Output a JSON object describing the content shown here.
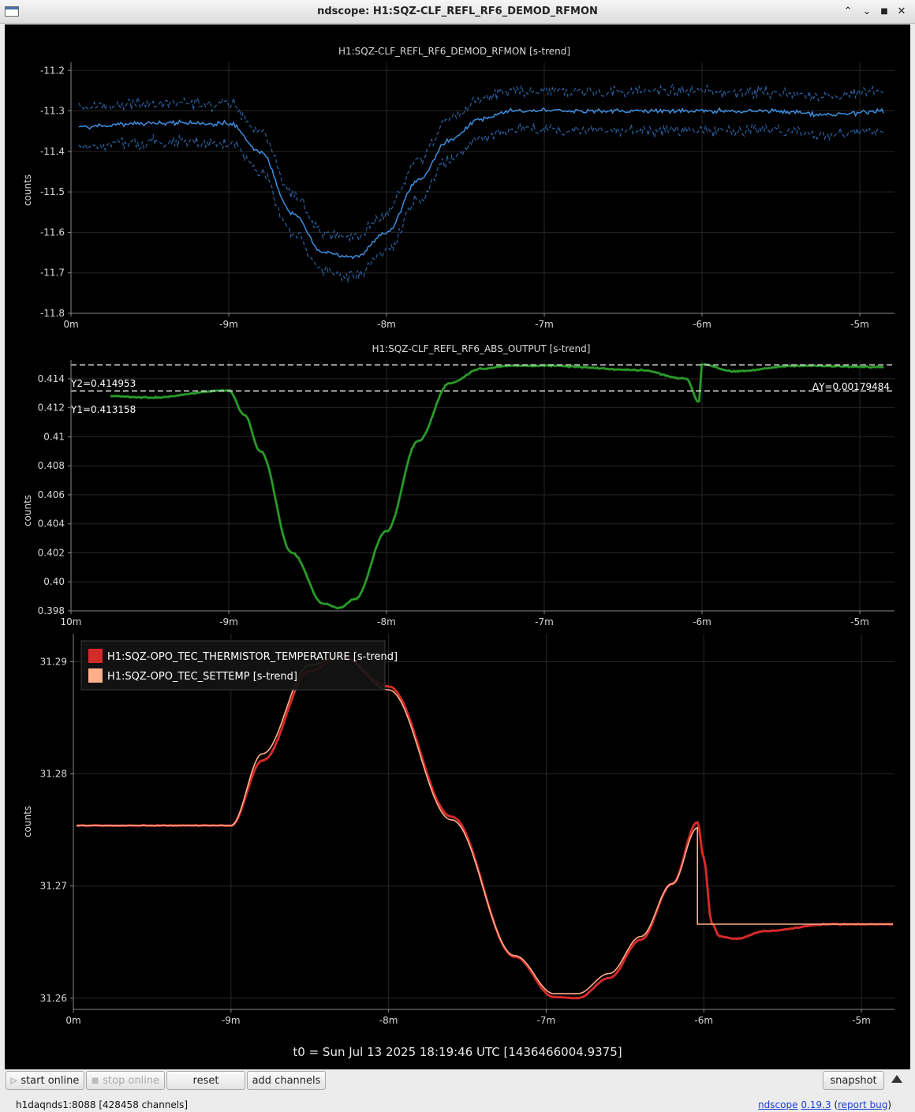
{
  "window": {
    "title": "ndscope: H1:SQZ-CLF_REFL_RF6_DEMOD_RFMON",
    "controls": {
      "keep_above": "⌃",
      "minimize": "⌄",
      "maximize": "■",
      "close": "✕"
    }
  },
  "plots": [
    {
      "title": "H1:SQZ-CLF_REFL_RF6_DEMOD_RFMON [s-trend]",
      "ylabel": "counts",
      "y_ticks": [
        "-11.2",
        "-11.3",
        "-11.4",
        "-11.5",
        "-11.6",
        "-11.7",
        "-11.8"
      ],
      "x_ticks": [
        "0m",
        "-9m",
        "-8m",
        "-7m",
        "-6m",
        "-5m"
      ]
    },
    {
      "title": "H1:SQZ-CLF_REFL_RF6_ABS_OUTPUT [s-trend]",
      "ylabel": "counts",
      "y_ticks": [
        "0.414",
        "0.412",
        "0.41",
        "0.408",
        "0.406",
        "0.404",
        "0.402",
        "0.40",
        "0.398"
      ],
      "x_ticks": [
        "10m",
        "-9m",
        "-8m",
        "-7m",
        "-6m",
        "-5m"
      ],
      "cursor_y2": "Y2=0.414953",
      "cursor_y1": "Y1=0.413158",
      "cursor_delta": "ΔY=0.00179484"
    },
    {
      "title": "",
      "ylabel": "counts",
      "y_ticks": [
        "31.29",
        "31.28",
        "31.27",
        "31.26"
      ],
      "x_ticks": [
        "0m",
        "-9m",
        "-8m",
        "-7m",
        "-6m",
        "-5m"
      ],
      "legend": [
        {
          "label": "H1:SQZ-OPO_TEC_THERMISTOR_TEMPERATURE [s-trend]",
          "color": "#d42a2a"
        },
        {
          "label": "H1:SQZ-OPO_TEC_SETTEMP [s-trend]",
          "color": "#ffb08a"
        }
      ]
    }
  ],
  "t0_label": "t0 = Sun Jul 13 2025 18:19:46 UTC [1436466004.9375]",
  "colors": {
    "rfmon_mean": "#3d8fe0",
    "rfmon_band": "#2a5f9e",
    "abs_output": "#2ea52e",
    "thermistor": "#d42a2a",
    "settemp": "#ffb08a"
  },
  "chart_data": [
    {
      "type": "line",
      "title": "H1:SQZ-CLF_REFL_RF6_DEMOD_RFMON [s-trend]",
      "ylabel": "counts",
      "xlabel": "",
      "x_unit": "minutes",
      "ylim": [
        -11.8,
        -11.18
      ],
      "series": [
        {
          "x": [
            -9.95,
            -9.5,
            -9.0,
            -8.8,
            -8.6,
            -8.4,
            -8.2,
            -8.0,
            -7.8,
            -7.6,
            -7.4,
            -7.2,
            -7.0,
            -6.6,
            -6.2,
            -6.0,
            -5.6,
            -5.2,
            -4.85
          ],
          "values": [
            -11.34,
            -11.33,
            -11.33,
            -11.4,
            -11.55,
            -11.65,
            -11.66,
            -11.6,
            -11.47,
            -11.37,
            -11.32,
            -11.3,
            -11.3,
            -11.3,
            -11.3,
            -11.3,
            -11.3,
            -11.31,
            -11.3
          ]
        }
      ]
    },
    {
      "type": "line",
      "title": "H1:SQZ-CLF_REFL_RF6_ABS_OUTPUT [s-trend]",
      "ylabel": "counts",
      "xlabel": "",
      "x_unit": "minutes",
      "ylim": [
        0.398,
        0.4153
      ],
      "series": [
        {
          "x": [
            -9.75,
            -9.5,
            -9.0,
            -8.9,
            -8.8,
            -8.6,
            -8.4,
            -8.3,
            -8.2,
            -8.0,
            -7.8,
            -7.6,
            -7.4,
            -7.2,
            -7.0,
            -6.4,
            -6.1,
            -6.02,
            -6.0,
            -5.8,
            -5.4,
            -4.85
          ],
          "values": [
            0.4128,
            0.4127,
            0.4132,
            0.4115,
            0.409,
            0.402,
            0.3985,
            0.3982,
            0.3988,
            0.4035,
            0.4097,
            0.4137,
            0.4147,
            0.4149,
            0.4149,
            0.4146,
            0.414,
            0.4124,
            0.415,
            0.4145,
            0.4149,
            0.4148
          ]
        }
      ],
      "cursors": {
        "Y1": 0.413158,
        "Y2": 0.414953,
        "dY": 0.00179484
      }
    },
    {
      "type": "line",
      "title": "",
      "ylabel": "counts",
      "xlabel": "",
      "x_unit": "minutes",
      "ylim": [
        31.259,
        31.2925
      ],
      "series": [
        {
          "name": "H1:SQZ-OPO_TEC_THERMISTOR_TEMPERATURE [s-trend]",
          "x": [
            -9.98,
            -9.5,
            -9.0,
            -8.8,
            -8.5,
            -8.3,
            -8.0,
            -7.6,
            -7.2,
            -6.95,
            -6.8,
            -6.6,
            -6.4,
            -6.2,
            -6.04,
            -6.0,
            -5.95,
            -5.9,
            -5.8,
            -5.6,
            -5.2,
            -4.8
          ],
          "values": [
            31.2754,
            31.2754,
            31.2754,
            31.2812,
            31.2892,
            31.2905,
            31.2878,
            31.2762,
            31.2637,
            31.2601,
            31.26,
            31.2618,
            31.2652,
            31.2702,
            31.2757,
            31.2725,
            31.2667,
            31.2655,
            31.2653,
            31.266,
            31.2666,
            31.2666
          ]
        },
        {
          "name": "H1:SQZ-OPO_TEC_SETTEMP [s-trend]",
          "x": [
            -9.98,
            -9.5,
            -9.0,
            -8.8,
            -8.5,
            -8.3,
            -8.0,
            -7.6,
            -7.2,
            -6.95,
            -6.8,
            -6.6,
            -6.4,
            -6.2,
            -6.04,
            -6.04,
            -5.6,
            -5.2,
            -4.8
          ],
          "values": [
            31.2754,
            31.2754,
            31.2754,
            31.2818,
            31.2897,
            31.2905,
            31.2875,
            31.2759,
            31.2638,
            31.2604,
            31.2604,
            31.2622,
            31.2655,
            31.2702,
            31.2752,
            31.2666,
            31.2666,
            31.2666,
            31.2666
          ]
        }
      ]
    }
  ],
  "toolbar": {
    "start_online": "start online",
    "stop_online": "stop online",
    "reset": "reset",
    "add_channels": "add channels",
    "snapshot": "snapshot"
  },
  "status": {
    "server": "h1daqnds1:8088  [428458 channels]",
    "app_name": "ndscope",
    "version": "0.19.3",
    "open_paren": " (",
    "report_bug": "report bug",
    "close_paren": ")"
  }
}
